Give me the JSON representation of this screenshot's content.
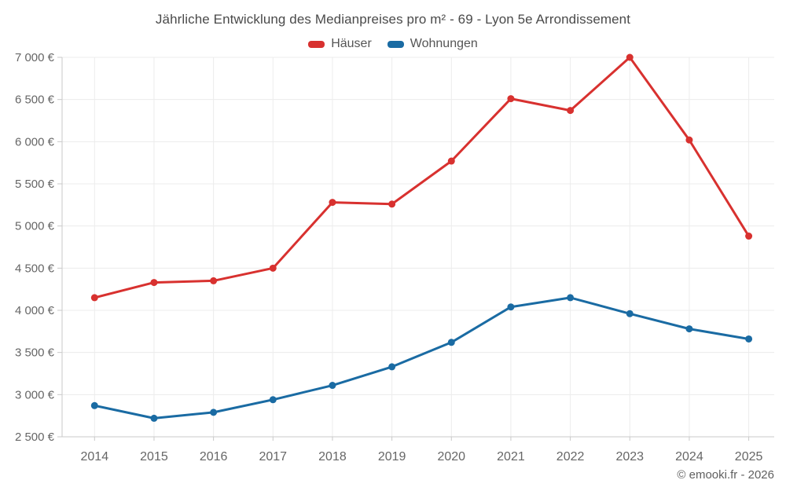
{
  "chart": {
    "title": "Jährliche Entwicklung des Medianpreises pro m² - 69 - Lyon 5e Arrondissement",
    "footer": "© emooki.fr - 2026"
  },
  "chart_data": {
    "type": "line",
    "title": "Jährliche Entwicklung des Medianpreises pro m² - 69 - Lyon 5e Arrondissement",
    "categories": [
      "2014",
      "2015",
      "2016",
      "2017",
      "2018",
      "2019",
      "2020",
      "2021",
      "2022",
      "2023",
      "2024",
      "2025"
    ],
    "series": [
      {
        "name": "Häuser",
        "color": "#d8312f",
        "values": [
          4150,
          4330,
          4350,
          4500,
          5280,
          5260,
          5770,
          6510,
          6370,
          7000,
          6020,
          4880
        ]
      },
      {
        "name": "Wohnungen",
        "color": "#1a6ba3",
        "values": [
          2870,
          2720,
          2790,
          2940,
          3110,
          3330,
          3620,
          4040,
          4150,
          3960,
          3780,
          3660
        ]
      }
    ],
    "y_axis": {
      "min": 2500,
      "max": 7000,
      "step": 500,
      "unit": "€",
      "tick_labels": [
        "7 000 €",
        "6 500 €",
        "6 000 €",
        "5 500 €",
        "5 000 €",
        "4 500 €",
        "4 000 €",
        "3 500 €",
        "3 000 €",
        "2 500 €"
      ]
    },
    "x_axis": {
      "tick_labels": [
        "2014",
        "2015",
        "2016",
        "2017",
        "2018",
        "2019",
        "2020",
        "2021",
        "2022",
        "2023",
        "2024",
        "2025"
      ]
    },
    "legend_position": "top",
    "grid": true,
    "colors": {
      "grid": "#ececec",
      "axis": "#c9c9c9",
      "tick_text": "#666666",
      "title_text": "#4a4a4a",
      "legend_text": "#555555"
    }
  }
}
